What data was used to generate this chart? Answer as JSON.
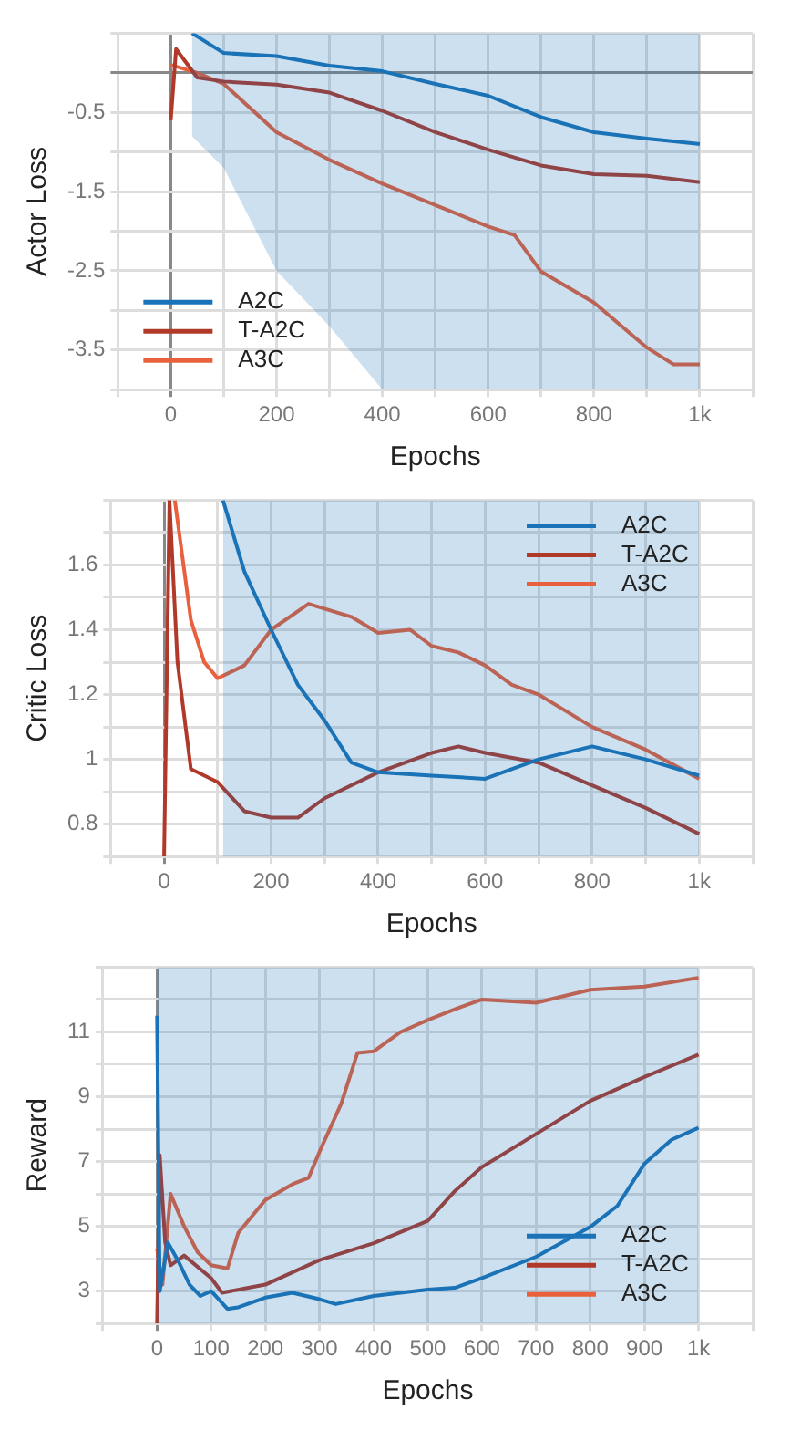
{
  "chart_data": [
    {
      "type": "line",
      "xlabel": "Epochs",
      "ylabel": "Actor Loss",
      "xlim": [
        -100,
        1100
      ],
      "xticks": [
        {
          "value": -100,
          "label": null
        },
        0,
        {
          "value": 100,
          "label": null
        },
        200,
        {
          "value": 300,
          "label": null
        },
        400,
        {
          "value": 500,
          "label": null
        },
        600,
        {
          "value": 700,
          "label": null
        },
        800,
        {
          "value": 900,
          "label": null
        },
        {
          "value": 1000,
          "label": "1k"
        },
        {
          "value": 1100,
          "label": null
        }
      ],
      "ylim": [
        -4,
        0.5
      ],
      "yticks": [
        {
          "value": -4,
          "label": null
        },
        -3.5,
        {
          "value": -3,
          "label": null
        },
        -2.5,
        {
          "value": -2,
          "label": null
        },
        -1.5,
        {
          "value": -1,
          "label": null
        },
        -0.5,
        {
          "value": 0,
          "label": null
        },
        {
          "value": 0.5,
          "label": null
        }
      ],
      "grid": true,
      "legend": "bottom left",
      "marker": "none",
      "line_style": "solid",
      "series": [
        {
          "name": "A2C",
          "color": "#1a72b8",
          "x": [
            40,
            100,
            200,
            300,
            400,
            500,
            600,
            700,
            800,
            900,
            1000
          ],
          "values": [
            0.5,
            0.25,
            0.21,
            0.09,
            0.02,
            -0.14,
            -0.29,
            -0.56,
            -0.75,
            -0.83,
            -0.9
          ],
          "lower": [
            -0.8,
            -1.2,
            -2.5,
            -3.2,
            -4,
            -4,
            -4,
            -4,
            -4,
            -4,
            -4
          ],
          "upper": [
            0.5,
            0.5,
            0.5,
            0.5,
            0.5,
            0.5,
            0.5,
            0.5,
            0.5,
            0.5,
            0.5
          ]
        },
        {
          "name": "T-A2C",
          "color": "#b0392a",
          "x": [
            0,
            10,
            50,
            100,
            200,
            300,
            400,
            500,
            600,
            700,
            800,
            900,
            1000
          ],
          "values": [
            -0.6,
            0.3,
            -0.06,
            -0.11,
            -0.15,
            -0.25,
            -0.48,
            -0.75,
            -0.97,
            -1.17,
            -1.28,
            -1.3,
            -1.38
          ]
        },
        {
          "name": "A3C",
          "color": "#e8603c",
          "x": [
            0,
            50,
            100,
            200,
            300,
            400,
            500,
            600,
            650,
            700,
            800,
            900,
            950,
            1000
          ],
          "values": [
            0.1,
            0,
            -0.14,
            -0.75,
            -1.1,
            -1.4,
            -1.67,
            -1.94,
            -2.05,
            -2.51,
            -2.9,
            -3.47,
            -3.68,
            -3.68
          ]
        }
      ]
    },
    {
      "type": "line",
      "xlabel": "Epochs",
      "ylabel": "Critic Loss",
      "xlim": [
        -100,
        1100
      ],
      "xticks": [
        {
          "value": -100,
          "label": null
        },
        0,
        {
          "value": 100,
          "label": null
        },
        200,
        {
          "value": 300,
          "label": null
        },
        400,
        {
          "value": 500,
          "label": null
        },
        600,
        {
          "value": 700,
          "label": null
        },
        800,
        {
          "value": 900,
          "label": null
        },
        {
          "value": 1000,
          "label": "1k"
        },
        {
          "value": 1100,
          "label": null
        }
      ],
      "ylim": [
        0.7,
        1.8
      ],
      "yticks": [
        {
          "value": 0.7,
          "label": null
        },
        0.8,
        {
          "value": 0.9,
          "label": null
        },
        1,
        {
          "value": 1.1,
          "label": null
        },
        1.2,
        {
          "value": 1.3,
          "label": null
        },
        1.4,
        {
          "value": 1.5,
          "label": null
        },
        1.6,
        {
          "value": 1.7,
          "label": null
        },
        {
          "value": 1.8,
          "label": null
        }
      ],
      "grid": true,
      "legend": "top right",
      "marker": "none",
      "line_style": "solid",
      "series": [
        {
          "name": "A2C",
          "color": "#1a72b8",
          "x": [
            110,
            150,
            200,
            250,
            300,
            350,
            400,
            500,
            600,
            700,
            800,
            900,
            1000
          ],
          "values": [
            1.8,
            1.58,
            1.4,
            1.23,
            1.12,
            0.99,
            0.96,
            0.95,
            0.94,
            1,
            1.04,
            1,
            0.95
          ],
          "lower": [
            0.7,
            0.7,
            0.7,
            0.7,
            0.7,
            0.7,
            0.7,
            0.7,
            0.7,
            0.7,
            0.7,
            0.7,
            0.7
          ],
          "upper": [
            1.8,
            1.8,
            1.8,
            1.8,
            1.8,
            1.8,
            1.8,
            1.8,
            1.8,
            1.8,
            1.8,
            1.8,
            1.8
          ]
        },
        {
          "name": "T-A2C",
          "color": "#b0392a",
          "x": [
            0,
            10,
            25,
            50,
            100,
            150,
            200,
            250,
            300,
            400,
            500,
            550,
            600,
            700,
            800,
            900,
            1000
          ],
          "values": [
            0.7,
            1.8,
            1.3,
            0.97,
            0.93,
            0.84,
            0.82,
            0.82,
            0.88,
            0.96,
            1.02,
            1.04,
            1.02,
            0.99,
            0.92,
            0.85,
            0.77
          ]
        },
        {
          "name": "A3C",
          "color": "#e8603c",
          "x": [
            20,
            50,
            75,
            100,
            150,
            200,
            270,
            350,
            400,
            460,
            500,
            550,
            600,
            650,
            700,
            800,
            900,
            1000
          ],
          "values": [
            1.8,
            1.43,
            1.3,
            1.25,
            1.29,
            1.4,
            1.48,
            1.44,
            1.39,
            1.4,
            1.35,
            1.33,
            1.29,
            1.23,
            1.2,
            1.1,
            1.03,
            0.94
          ]
        }
      ]
    },
    {
      "type": "line",
      "xlabel": "Epochs",
      "ylabel": "Reward",
      "xlim": [
        -100,
        1100
      ],
      "xticks": [
        {
          "value": -100,
          "label": null
        },
        0,
        100,
        200,
        300,
        400,
        500,
        600,
        700,
        800,
        900,
        {
          "value": 1000,
          "label": "1k"
        },
        {
          "value": 1100,
          "label": null
        }
      ],
      "ylim": [
        2,
        13
      ],
      "yticks": [
        {
          "value": 2,
          "label": null
        },
        3,
        {
          "value": 4,
          "label": null
        },
        5,
        {
          "value": 6,
          "label": null
        },
        7,
        {
          "value": 8,
          "label": null
        },
        9,
        {
          "value": 10,
          "label": null
        },
        11,
        {
          "value": 12,
          "label": null
        },
        {
          "value": 13,
          "label": null
        }
      ],
      "grid": true,
      "legend": "bottom right",
      "marker": "none",
      "line_style": "solid",
      "series": [
        {
          "name": "A2C",
          "color": "#1a72b8",
          "x": [
            0,
            5,
            20,
            40,
            60,
            80,
            100,
            130,
            150,
            200,
            250,
            300,
            330,
            400,
            500,
            550,
            600,
            700,
            800,
            850,
            900,
            950,
            1000
          ],
          "values": [
            11.5,
            3,
            4.5,
            3.9,
            3.2,
            2.85,
            3,
            2.45,
            2.5,
            2.8,
            2.95,
            2.75,
            2.6,
            2.85,
            3.05,
            3.1,
            3.4,
            4.06,
            4.98,
            5.63,
            6.93,
            7.67,
            8.04
          ],
          "lower": [
            2,
            2,
            2,
            2,
            2,
            2,
            2,
            2,
            2,
            2,
            2,
            2,
            2,
            2,
            2,
            2,
            2,
            2,
            2,
            2,
            2,
            2,
            2
          ],
          "upper": [
            13,
            13,
            13,
            13,
            13,
            13,
            13,
            13,
            13,
            13,
            13,
            13,
            13,
            13,
            13,
            13,
            13,
            13,
            13,
            13,
            13,
            13,
            13
          ]
        },
        {
          "name": "T-A2C",
          "color": "#b0392a",
          "x": [
            0,
            5,
            15,
            25,
            50,
            100,
            120,
            200,
            300,
            400,
            500,
            550,
            600,
            700,
            800,
            900,
            1000
          ],
          "values": [
            2,
            7.2,
            4.5,
            3.8,
            4.1,
            3.4,
            2.95,
            3.2,
            3.96,
            4.48,
            5.17,
            6.09,
            6.83,
            7.85,
            8.87,
            9.61,
            10.3
          ]
        },
        {
          "name": "A3C",
          "color": "#e8603c",
          "x": [
            0,
            10,
            25,
            50,
            75,
            100,
            130,
            150,
            200,
            250,
            280,
            300,
            340,
            370,
            400,
            450,
            500,
            550,
            600,
            700,
            800,
            900,
            1000
          ],
          "values": [
            4.3,
            3.2,
            6,
            5,
            4.2,
            3.8,
            3.7,
            4.8,
            5.81,
            6.3,
            6.5,
            7.3,
            8.78,
            10.35,
            10.4,
            11,
            11.37,
            11.7,
            12,
            11.9,
            12.3,
            12.4,
            12.67
          ]
        }
      ]
    }
  ]
}
